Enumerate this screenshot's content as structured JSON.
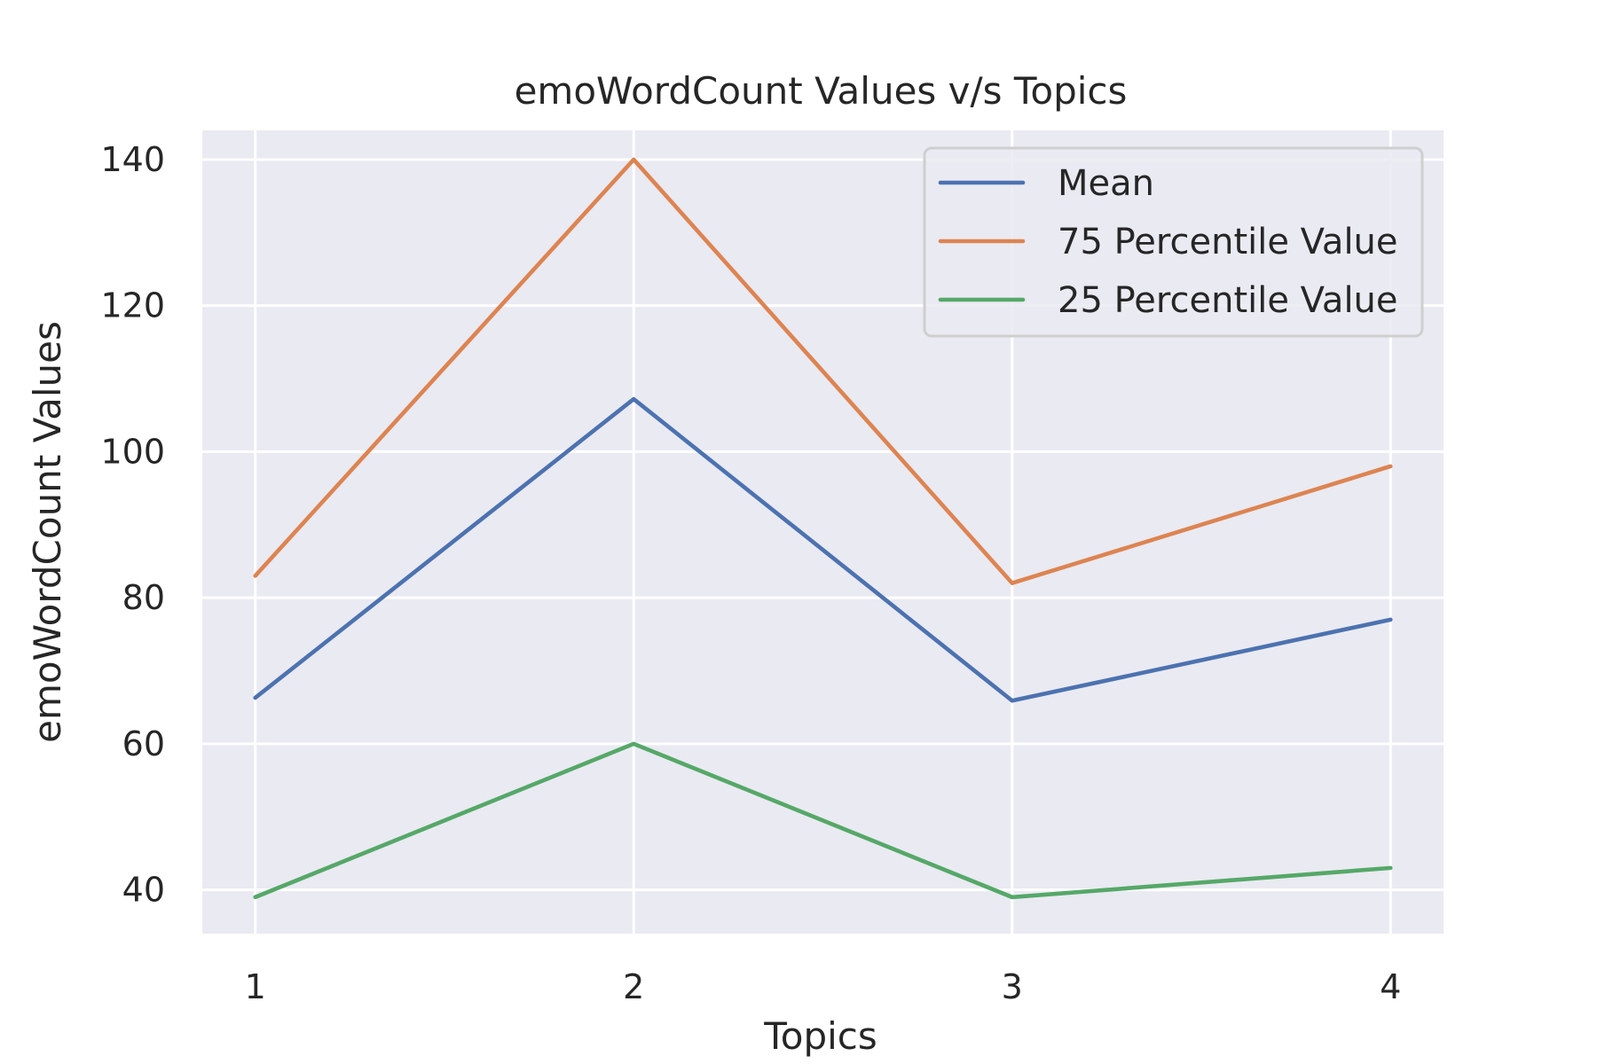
{
  "chart_data": {
    "type": "line",
    "title": "emoWordCount Values v/s Topics",
    "xlabel": "Topics",
    "ylabel": "emoWordCount Values",
    "x": [
      1,
      2,
      3,
      4
    ],
    "x_tick_labels": [
      "1",
      "2",
      "3",
      "4"
    ],
    "xlim": [
      0.86,
      4.14
    ],
    "ylim": [
      34,
      144
    ],
    "y_ticks": [
      40,
      60,
      80,
      100,
      120,
      140
    ],
    "y_tick_labels": [
      "40",
      "60",
      "80",
      "100",
      "120",
      "140"
    ],
    "grid": true,
    "legend_position": "top-right",
    "series": [
      {
        "name": "Mean",
        "values": [
          66.3,
          107.2,
          65.9,
          77.0
        ],
        "color": "#4c72b0"
      },
      {
        "name": "75 Percentile Value",
        "values": [
          83,
          140,
          82,
          98
        ],
        "color": "#dd8452"
      },
      {
        "name": "25 Percentile Value",
        "values": [
          39,
          60,
          39,
          43
        ],
        "color": "#55a868"
      }
    ]
  }
}
